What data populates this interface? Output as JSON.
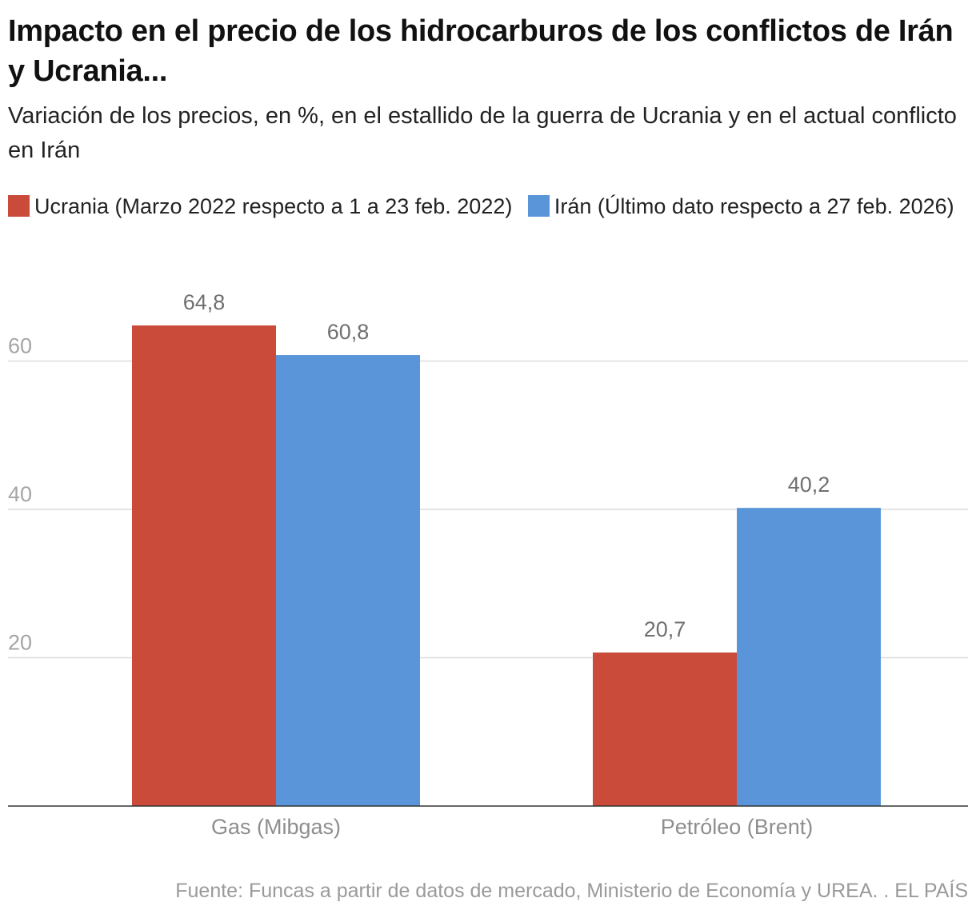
{
  "chart_data": {
    "type": "bar",
    "title": "Impacto en el precio de los hidrocarburos de los conflictos de Irán y Ucrania...",
    "subtitle": "Variación de los precios, en %, en el estallido de la guerra de Ucrania y en el actual conflicto en Irán",
    "categories": [
      "Gas (Mibgas)",
      "Petróleo (Brent)"
    ],
    "series": [
      {
        "name": "Ucrania (Marzo 2022 respecto a 1 a 23 feb. 2022)",
        "values": [
          64.8,
          20.7
        ],
        "labels": [
          "64,8",
          "20,7"
        ],
        "color": "#cb4b3a"
      },
      {
        "name": "Irán (Último dato respecto a 27 feb. 2026)",
        "values": [
          60.8,
          40.2
        ],
        "labels": [
          "60,8",
          "40,2"
        ],
        "color": "#5b95d9"
      }
    ],
    "yticks": [
      20,
      40,
      60
    ],
    "ylim": [
      0,
      70
    ],
    "grid": true,
    "legend_position": "top-left",
    "xlabel": "",
    "ylabel": "",
    "source": "Fuente: Funcas a partir de datos de mercado, Ministerio de Economía y UREA. . EL PAÍS"
  }
}
